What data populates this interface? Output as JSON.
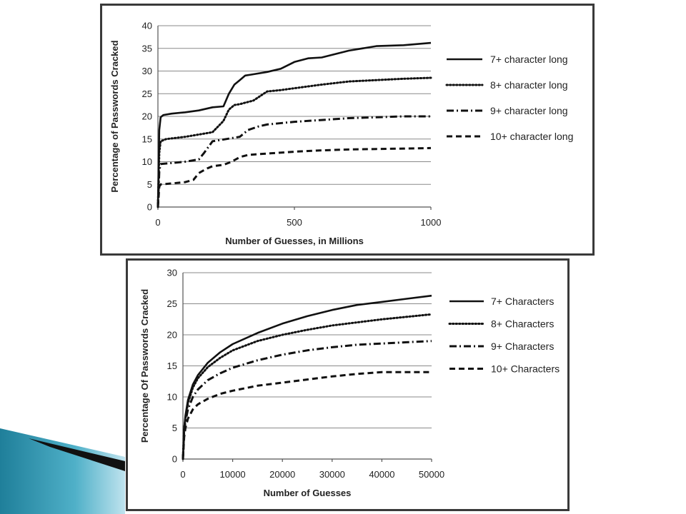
{
  "chart_data": [
    {
      "type": "line",
      "title": "",
      "xlabel": "Number of Guesses, in Millions",
      "ylabel": "Percentage of Passwords Cracked",
      "xlim": [
        0,
        1000
      ],
      "ylim": [
        0,
        40
      ],
      "x_ticks": [
        0,
        500,
        1000
      ],
      "y_ticks": [
        0,
        5,
        10,
        15,
        20,
        25,
        30,
        35,
        40
      ],
      "grid": "horizontal",
      "legend": "right",
      "series": [
        {
          "name": "7+ character long",
          "style": "solid",
          "x": [
            0,
            5,
            10,
            20,
            50,
            100,
            150,
            200,
            240,
            260,
            280,
            300,
            320,
            340,
            400,
            450,
            500,
            550,
            600,
            700,
            800,
            900,
            1000
          ],
          "y": [
            0,
            17,
            19.8,
            20.3,
            20.6,
            20.9,
            21.3,
            22,
            22.2,
            25,
            27,
            28,
            29,
            29.2,
            29.8,
            30.5,
            32,
            32.8,
            33,
            34.5,
            35.5,
            35.7,
            36.2
          ]
        },
        {
          "name": "8+ character long",
          "style": "dotted",
          "x": [
            0,
            5,
            10,
            30,
            100,
            200,
            240,
            260,
            280,
            300,
            350,
            400,
            450,
            500,
            600,
            700,
            800,
            900,
            1000
          ],
          "y": [
            0,
            12,
            14.5,
            15,
            15.5,
            16.5,
            19,
            21.5,
            22.5,
            22.7,
            23.5,
            25.5,
            25.8,
            26.2,
            27,
            27.7,
            28,
            28.3,
            28.5
          ]
        },
        {
          "name": "9+ character long",
          "style": "dashdot",
          "x": [
            0,
            5,
            10,
            50,
            100,
            150,
            170,
            200,
            250,
            300,
            330,
            370,
            400,
            500,
            600,
            700,
            800,
            900,
            1000
          ],
          "y": [
            0,
            8,
            9.5,
            9.7,
            10,
            10.5,
            12,
            14.5,
            15,
            15.5,
            17,
            17.8,
            18.2,
            18.8,
            19.2,
            19.6,
            19.8,
            20,
            20
          ]
        },
        {
          "name": "10+ character long",
          "style": "dashed",
          "x": [
            0,
            5,
            10,
            50,
            100,
            130,
            150,
            180,
            200,
            240,
            270,
            300,
            330,
            400,
            500,
            600,
            700,
            800,
            900,
            1000
          ],
          "y": [
            0,
            4.5,
            5,
            5.2,
            5.5,
            6,
            7.5,
            8.5,
            9,
            9.3,
            10,
            11,
            11.5,
            11.8,
            12.2,
            12.5,
            12.7,
            12.8,
            12.9,
            13
          ]
        }
      ]
    },
    {
      "type": "line",
      "title": "",
      "xlabel": "Number of Guesses",
      "ylabel": "Percentage Of Passwords Cracked",
      "xlim": [
        0,
        50000
      ],
      "ylim": [
        0,
        30
      ],
      "x_ticks": [
        0,
        10000,
        20000,
        30000,
        40000,
        50000
      ],
      "y_ticks": [
        0,
        5,
        10,
        15,
        20,
        25,
        30
      ],
      "grid": "horizontal",
      "legend": "right",
      "series": [
        {
          "name": "7+ Characters",
          "style": "solid",
          "x": [
            0,
            250,
            500,
            1000,
            2000,
            3000,
            5000,
            7500,
            10000,
            15000,
            20000,
            25000,
            30000,
            35000,
            40000,
            45000,
            50000
          ],
          "y": [
            0,
            5,
            7,
            9.5,
            12,
            13.5,
            15.5,
            17.2,
            18.5,
            20.3,
            21.8,
            23,
            24,
            24.8,
            25.3,
            25.8,
            26.3
          ]
        },
        {
          "name": "8+ Characters",
          "style": "dotted",
          "x": [
            0,
            250,
            500,
            1000,
            2000,
            3000,
            5000,
            7500,
            10000,
            15000,
            20000,
            25000,
            30000,
            35000,
            40000,
            45000,
            50000
          ],
          "y": [
            0,
            5,
            6.5,
            9,
            11.5,
            13,
            14.8,
            16.3,
            17.5,
            19,
            20,
            20.8,
            21.5,
            22,
            22.5,
            22.9,
            23.3
          ]
        },
        {
          "name": "9+ Characters",
          "style": "dashdot",
          "x": [
            0,
            250,
            500,
            1000,
            2000,
            3000,
            5000,
            7500,
            10000,
            15000,
            20000,
            25000,
            30000,
            35000,
            40000,
            45000,
            50000
          ],
          "y": [
            0,
            4.5,
            6,
            8,
            10,
            11.2,
            12.7,
            13.8,
            14.7,
            15.9,
            16.8,
            17.5,
            18,
            18.4,
            18.6,
            18.8,
            19
          ]
        },
        {
          "name": "10+ Characters",
          "style": "dashed",
          "x": [
            0,
            250,
            500,
            1000,
            2000,
            3000,
            5000,
            7500,
            10000,
            15000,
            20000,
            25000,
            30000,
            35000,
            40000,
            45000,
            50000
          ],
          "y": [
            0,
            3.5,
            5,
            6.5,
            8,
            8.8,
            9.7,
            10.5,
            11,
            11.8,
            12.3,
            12.8,
            13.3,
            13.7,
            14,
            14,
            14
          ]
        }
      ]
    }
  ]
}
